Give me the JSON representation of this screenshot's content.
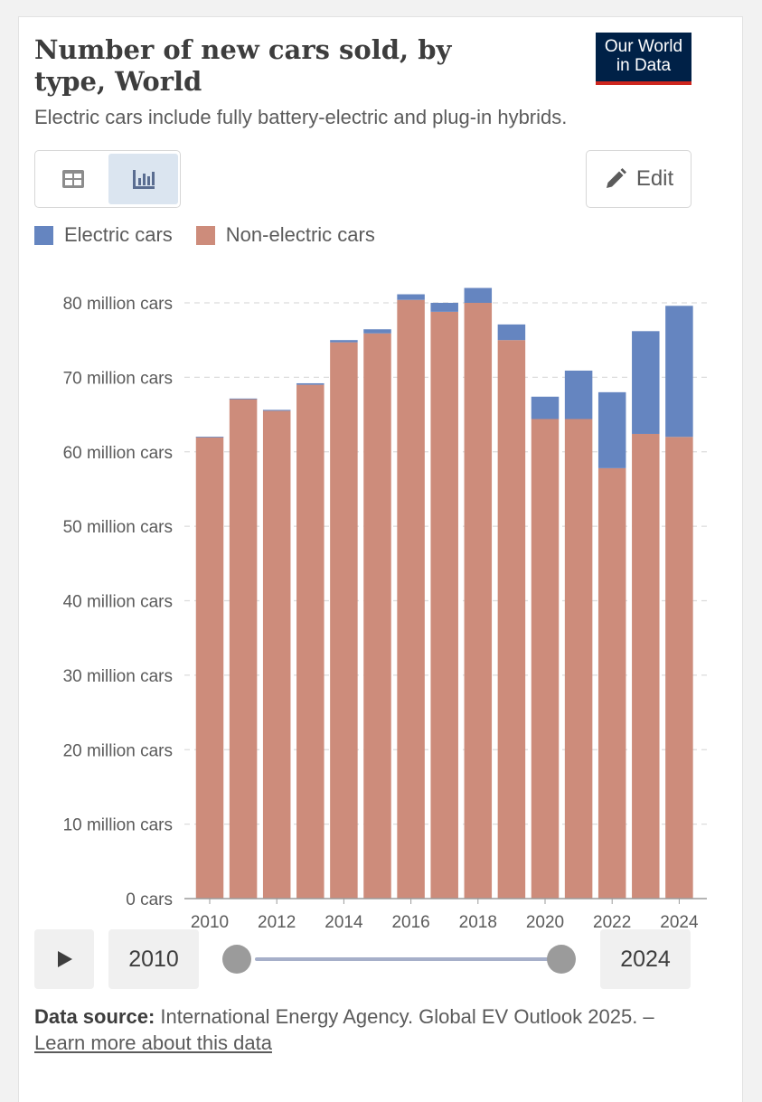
{
  "header": {
    "title": "Number of new cars sold, by type, World",
    "subtitle": "Electric cars include fully battery-electric and plug-in hybrids.",
    "logo_line1": "Our World",
    "logo_line2": "in Data"
  },
  "toolbar": {
    "table_icon": "table-icon",
    "chart_icon": "bar-chart-icon",
    "edit_label": "Edit"
  },
  "legend": {
    "items": [
      {
        "label": "Electric cars",
        "color": "#6585c0"
      },
      {
        "label": "Non-electric cars",
        "color": "#cd8c7b"
      }
    ]
  },
  "timeline": {
    "start_year": "2010",
    "end_year": "2024",
    "play_icon": "play-icon"
  },
  "source": {
    "label": "Data source:",
    "text": " International Energy Agency. Global EV Outlook 2025. – ",
    "link": "Learn more about this data"
  },
  "chart_data": {
    "type": "bar",
    "stacked": true,
    "title": "Number of new cars sold, by type, World",
    "xlabel": "",
    "ylabel": "",
    "categories": [
      "2010",
      "2011",
      "2012",
      "2013",
      "2014",
      "2015",
      "2016",
      "2017",
      "2018",
      "2019",
      "2020",
      "2021",
      "2022",
      "2023",
      "2024"
    ],
    "x_tick_labels": [
      "2010",
      "2012",
      "2014",
      "2016",
      "2018",
      "2020",
      "2022",
      "2024"
    ],
    "y_ticks": [
      0,
      10,
      20,
      30,
      40,
      50,
      60,
      70,
      80
    ],
    "y_tick_labels": [
      "0 cars",
      "10 million cars",
      "20 million cars",
      "30 million cars",
      "40 million cars",
      "50 million cars",
      "60 million cars",
      "70 million cars",
      "80 million cars"
    ],
    "ylim": [
      0,
      80
    ],
    "units": "million cars",
    "grid": true,
    "series": [
      {
        "name": "Non-electric cars",
        "color": "#cd8c7b",
        "values": [
          62.0,
          67.1,
          65.5,
          69.0,
          74.7,
          75.9,
          80.4,
          78.8,
          80.0,
          75.0,
          64.4,
          64.4,
          57.8,
          62.4,
          62.0
        ]
      },
      {
        "name": "Electric cars",
        "color": "#6585c0",
        "values": [
          0.01,
          0.05,
          0.13,
          0.2,
          0.3,
          0.55,
          0.75,
          1.2,
          2.0,
          2.1,
          3.0,
          6.5,
          10.2,
          13.8,
          17.6
        ]
      }
    ]
  }
}
